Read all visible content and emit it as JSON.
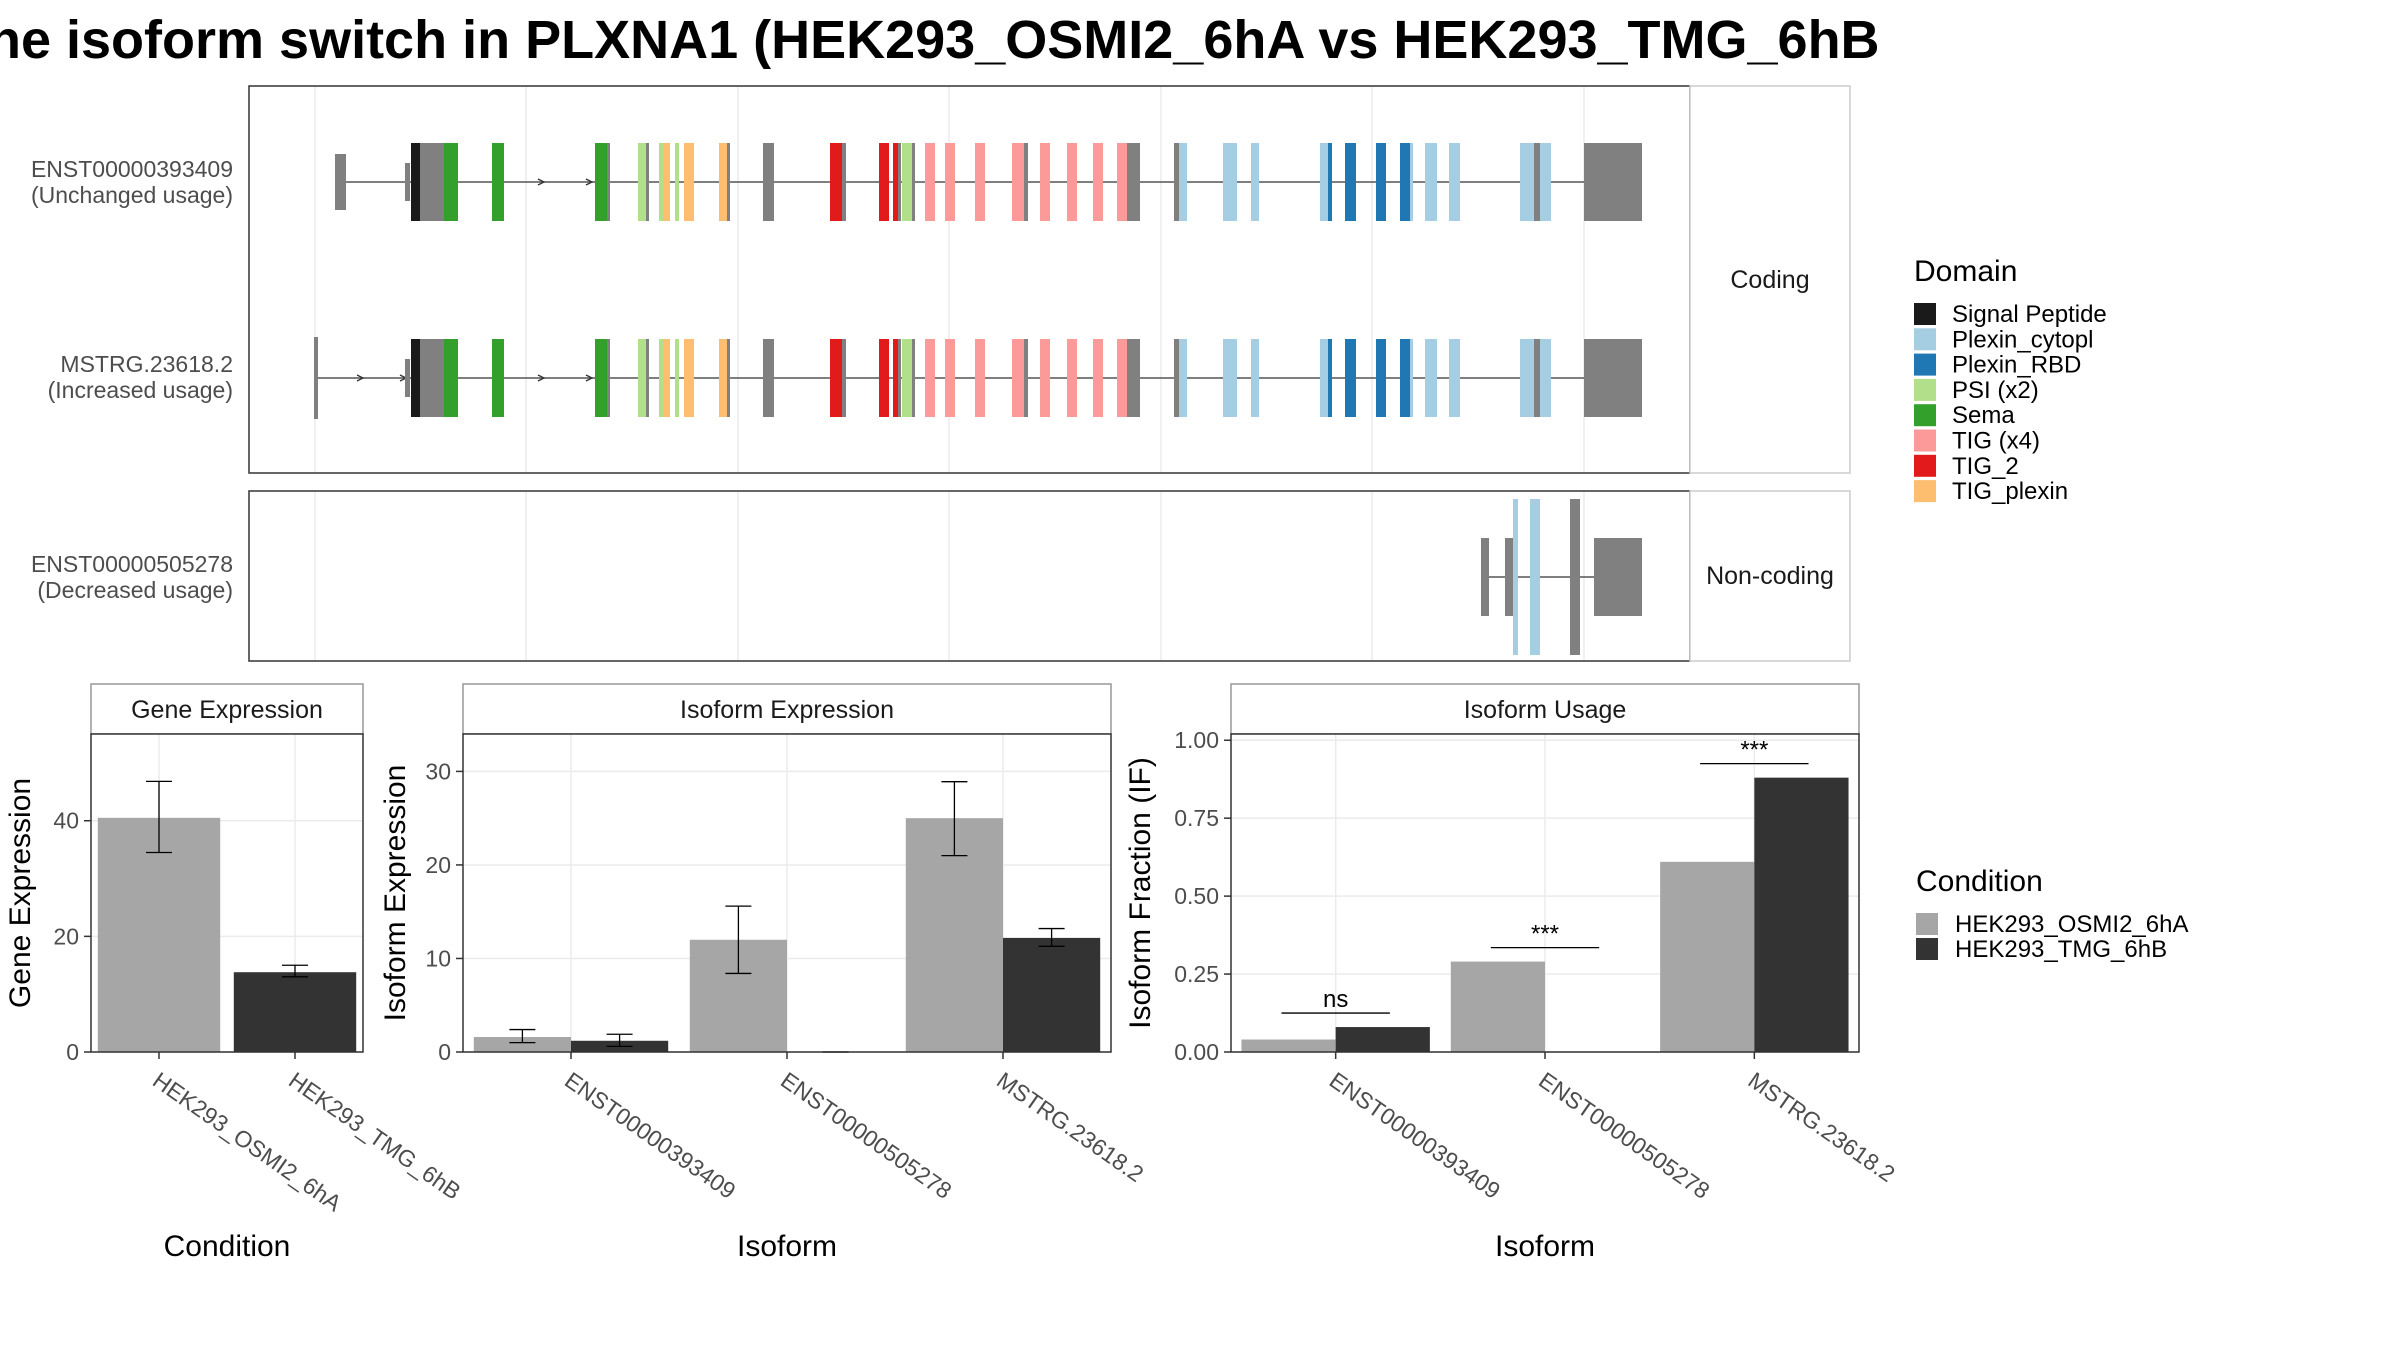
{
  "title": "he isoform switch in PLXNA1 (HEK293_OSMI2_6hA vs HEK293_TMG_6hB",
  "structure_panels": {
    "coding_label": "Coding",
    "noncoding_label": "Non-coding",
    "isoforms": [
      {
        "id": "ENST00000393409",
        "usage": "(Unchanged usage)",
        "group": "coding"
      },
      {
        "id": "MSTRG.23618.2",
        "usage": "(Increased usage)",
        "group": "coding"
      },
      {
        "id": "ENST00000505278",
        "usage": "(Decreased usage)",
        "group": "noncoding"
      }
    ]
  },
  "domain_legend": {
    "title": "Domain",
    "items": [
      {
        "label": "Signal Peptide",
        "color": "#1a1a1a"
      },
      {
        "label": "Plexin_cytopl",
        "color": "#a6cee3"
      },
      {
        "label": "Plexin_RBD",
        "color": "#1f78b4"
      },
      {
        "label": "PSI (x2)",
        "color": "#b2df8a"
      },
      {
        "label": "Sema",
        "color": "#33a02c"
      },
      {
        "label": "TIG (x4)",
        "color": "#fb9a99"
      },
      {
        "label": "TIG_2",
        "color": "#e31a1c"
      },
      {
        "label": "TIG_plexin",
        "color": "#fdbf6f"
      }
    ]
  },
  "condition_legend": {
    "title": "Condition",
    "items": [
      {
        "label": "HEK293_OSMI2_6hA",
        "color": "#a6a6a6"
      },
      {
        "label": "HEK293_TMG_6hB",
        "color": "#333333"
      }
    ]
  },
  "chart_data": [
    {
      "type": "bar",
      "title": "Gene Expression",
      "xlabel": "Condition",
      "ylabel": "Gene Expression",
      "categories": [
        "HEK293_OSMI2_6hA",
        "HEK293_TMG_6hB"
      ],
      "values": [
        40.5,
        13.8
      ],
      "error_low": [
        34.5,
        13.0
      ],
      "error_high": [
        46.8,
        15.0
      ],
      "colors": [
        "#a6a6a6",
        "#333333"
      ],
      "ylim": [
        0,
        55
      ],
      "yticks": [
        0,
        20,
        40
      ]
    },
    {
      "type": "bar",
      "title": "Isoform Expression",
      "xlabel": "Isoform",
      "ylabel": "Isoform Expression",
      "categories": [
        "ENST00000393409",
        "ENST00000505278",
        "MSTRG.23618.2"
      ],
      "series": [
        {
          "name": "HEK293_OSMI2_6hA",
          "values": [
            1.6,
            12.0,
            25.0
          ],
          "error_low": [
            1.0,
            8.4,
            21.0
          ],
          "error_high": [
            2.4,
            15.6,
            28.9
          ]
        },
        {
          "name": "HEK293_TMG_6hB",
          "values": [
            1.2,
            0.0,
            12.2
          ],
          "error_low": [
            0.6,
            0.0,
            11.3
          ],
          "error_high": [
            1.9,
            0.0,
            13.2
          ]
        }
      ],
      "ylim": [
        0,
        34
      ],
      "yticks": [
        0,
        10,
        20,
        30
      ]
    },
    {
      "type": "bar",
      "title": "Isoform Usage",
      "xlabel": "Isoform",
      "ylabel": "Isoform Fraction (IF)",
      "categories": [
        "ENST00000393409",
        "ENST00000505278",
        "MSTRG.23618.2"
      ],
      "series": [
        {
          "name": "HEK293_OSMI2_6hA",
          "values": [
            0.04,
            0.29,
            0.61
          ]
        },
        {
          "name": "HEK293_TMG_6hB",
          "values": [
            0.08,
            0.0,
            0.88
          ]
        }
      ],
      "significance": [
        "ns",
        "***",
        "***"
      ],
      "ylim": [
        0,
        1.02
      ],
      "yticks": [
        "0.00",
        "0.25",
        "0.50",
        "0.75",
        "1.00"
      ]
    }
  ]
}
